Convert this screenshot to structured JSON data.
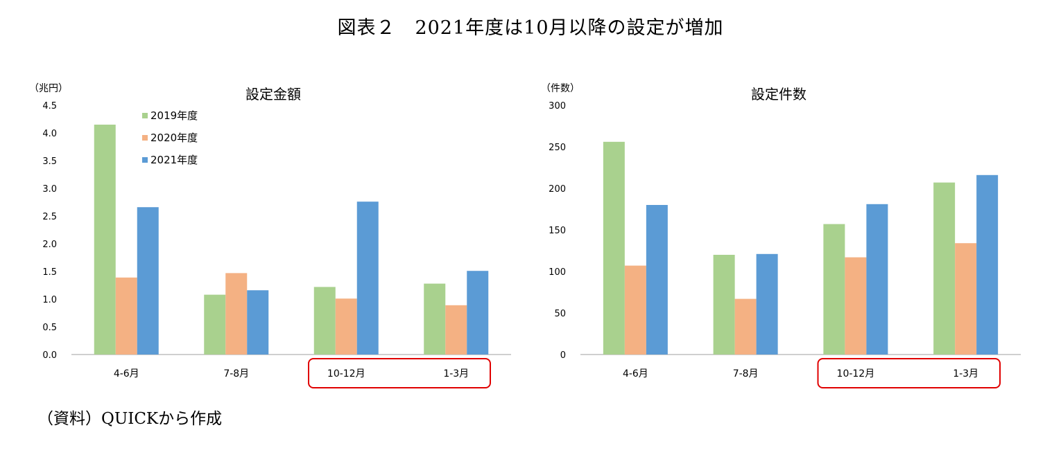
{
  "figure": {
    "title": "図表２　2021年度は10月以降の設定が増加",
    "source": "（資料）QUICKから作成"
  },
  "colors": {
    "s2019": "#a9d18e",
    "s2020": "#f4b183",
    "s2021": "#5b9bd5",
    "highlight": "#e00000",
    "axis": "#bfbfbf"
  },
  "chart_data": [
    {
      "type": "bar",
      "title": "設定金額",
      "unit_label": "（兆円）",
      "categories": [
        "4-6月",
        "7-8月",
        "10-12月",
        "1-3月"
      ],
      "ylim": [
        0,
        4.5
      ],
      "yticks": [
        "0.0",
        "0.5",
        "1.0",
        "1.5",
        "2.0",
        "2.5",
        "3.0",
        "3.5",
        "4.0",
        "4.5"
      ],
      "ytick_values": [
        0,
        0.5,
        1,
        1.5,
        2,
        2.5,
        3,
        3.5,
        4,
        4.5
      ],
      "legend": "top-left",
      "highlight_categories": [
        "10-12月",
        "1-3月"
      ],
      "series": [
        {
          "name": "2019年度",
          "color_key": "s2019",
          "values": [
            4.15,
            1.08,
            1.22,
            1.28
          ]
        },
        {
          "name": "2020年度",
          "color_key": "s2020",
          "values": [
            1.39,
            1.47,
            1.01,
            0.89
          ]
        },
        {
          "name": "2021年度",
          "color_key": "s2021",
          "values": [
            2.66,
            1.16,
            2.76,
            1.51
          ]
        }
      ]
    },
    {
      "type": "bar",
      "title": "設定件数",
      "unit_label": "（件数）",
      "categories": [
        "4-6月",
        "7-8月",
        "10-12月",
        "1-3月"
      ],
      "ylim": [
        0,
        300
      ],
      "yticks": [
        "0",
        "50",
        "100",
        "150",
        "200",
        "250",
        "300"
      ],
      "ytick_values": [
        0,
        50,
        100,
        150,
        200,
        250,
        300
      ],
      "legend": "none",
      "highlight_categories": [
        "10-12月",
        "1-3月"
      ],
      "series": [
        {
          "name": "2019年度",
          "color_key": "s2019",
          "values": [
            256,
            120,
            157,
            207
          ]
        },
        {
          "name": "2020年度",
          "color_key": "s2020",
          "values": [
            107,
            67,
            117,
            134
          ]
        },
        {
          "name": "2021年度",
          "color_key": "s2021",
          "values": [
            180,
            121,
            181,
            216
          ]
        }
      ]
    }
  ]
}
